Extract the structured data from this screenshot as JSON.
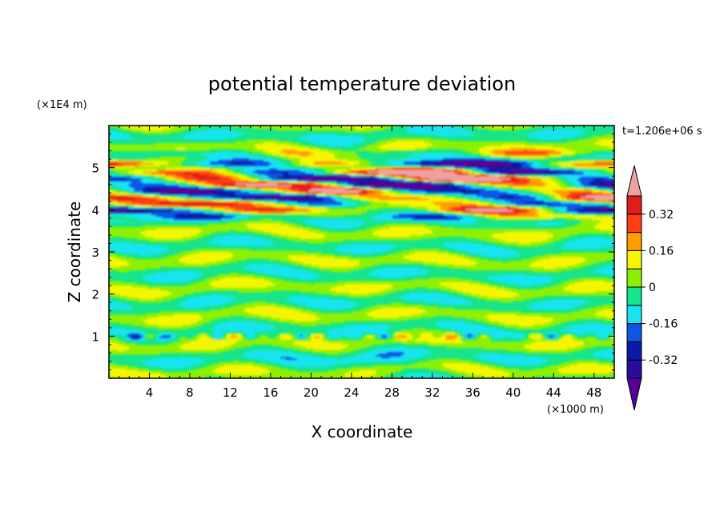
{
  "chart_data": {
    "type": "heatmap",
    "title": "potential temperature deviation",
    "xlabel": "X coordinate",
    "ylabel": "Z coordinate",
    "x_unit": "(×1000 m)",
    "y_unit": "(×1E4 m)",
    "time_label": "t=1.206e+06 s",
    "xlim": [
      0,
      50
    ],
    "ylim": [
      0,
      6
    ],
    "x_ticks": [
      4,
      8,
      12,
      16,
      20,
      24,
      28,
      32,
      36,
      40,
      44,
      48
    ],
    "y_ticks": [
      1,
      2,
      3,
      4,
      5
    ],
    "colorbar": {
      "levels": [
        -0.4,
        -0.32,
        -0.24,
        -0.16,
        -0.08,
        0,
        0.08,
        0.16,
        0.24,
        0.32,
        0.4
      ],
      "colors": [
        "#5a009a",
        "#2b0a9e",
        "#0a1aa8",
        "#0f55e6",
        "#18e4f0",
        "#15e58c",
        "#8ef000",
        "#f5f500",
        "#ff9c00",
        "#ff3c14",
        "#e21b1b",
        "#f0a0a0"
      ],
      "tick_labels": [
        {
          "value": 0.32,
          "label": "0.32"
        },
        {
          "value": 0.16,
          "label": "0.16"
        },
        {
          "value": 0,
          "label": "0"
        },
        {
          "value": -0.16,
          "label": "-0.16"
        },
        {
          "value": -0.32,
          "label": "-0.32"
        }
      ],
      "extend": "both"
    },
    "bands": [
      {
        "z": 5.35,
        "amp": 0.12
      },
      {
        "z": 5.1,
        "amp": 0.3
      },
      {
        "z": 4.9,
        "amp": 0.42
      },
      {
        "z": 4.75,
        "amp": 0.45
      },
      {
        "z": 4.6,
        "amp": 0.42
      },
      {
        "z": 4.45,
        "amp": 0.36
      },
      {
        "z": 4.3,
        "amp": 0.3
      },
      {
        "z": 4.15,
        "amp": 0.22
      },
      {
        "z": 4.0,
        "amp": 0.3
      },
      {
        "z": 3.85,
        "amp": 0.15
      }
    ]
  }
}
